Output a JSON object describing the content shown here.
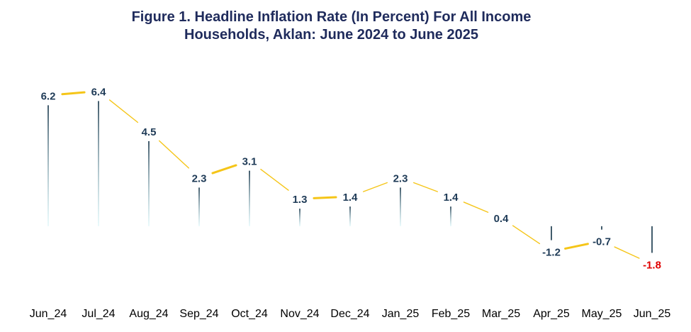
{
  "chart_data": {
    "type": "line",
    "title": "Figure 1. Headline Inflation Rate (In Percent) For All Income Households, Aklan: June 2024 to June 2025",
    "title_lines": [
      "Figure 1. Headline Inflation Rate (In Percent) For All Income",
      "Households, Aklan: June 2024 to June 2025"
    ],
    "categories": [
      "Jun_24",
      "Jul_24",
      "Aug_24",
      "Sep_24",
      "Oct_24",
      "Nov_24",
      "Dec_24",
      "Jan_25",
      "Feb_25",
      "Mar_25",
      "Apr_25",
      "May_25",
      "Jun_25"
    ],
    "values": [
      6.2,
      6.4,
      4.5,
      2.3,
      3.1,
      1.3,
      1.4,
      2.3,
      1.4,
      0.4,
      -1.2,
      -0.7,
      -1.8
    ],
    "value_labels": [
      "6.2",
      "6.4",
      "4.5",
      "2.3",
      "3.1",
      "1.3",
      "1.4",
      "2.3",
      "1.4",
      "0.4",
      "-1.2",
      "-0.7",
      "-1.8"
    ],
    "xlabel": "",
    "ylabel": "",
    "ylim": [
      -3.5,
      8.7
    ],
    "grid": false,
    "legend": "none",
    "colors": {
      "line": "#F5C518",
      "label": "#1F3B57",
      "negative_highlight": "#E00000",
      "drop_line": "#2E4A5C",
      "title": "#1F2B5C"
    },
    "highlight_index": 12
  }
}
